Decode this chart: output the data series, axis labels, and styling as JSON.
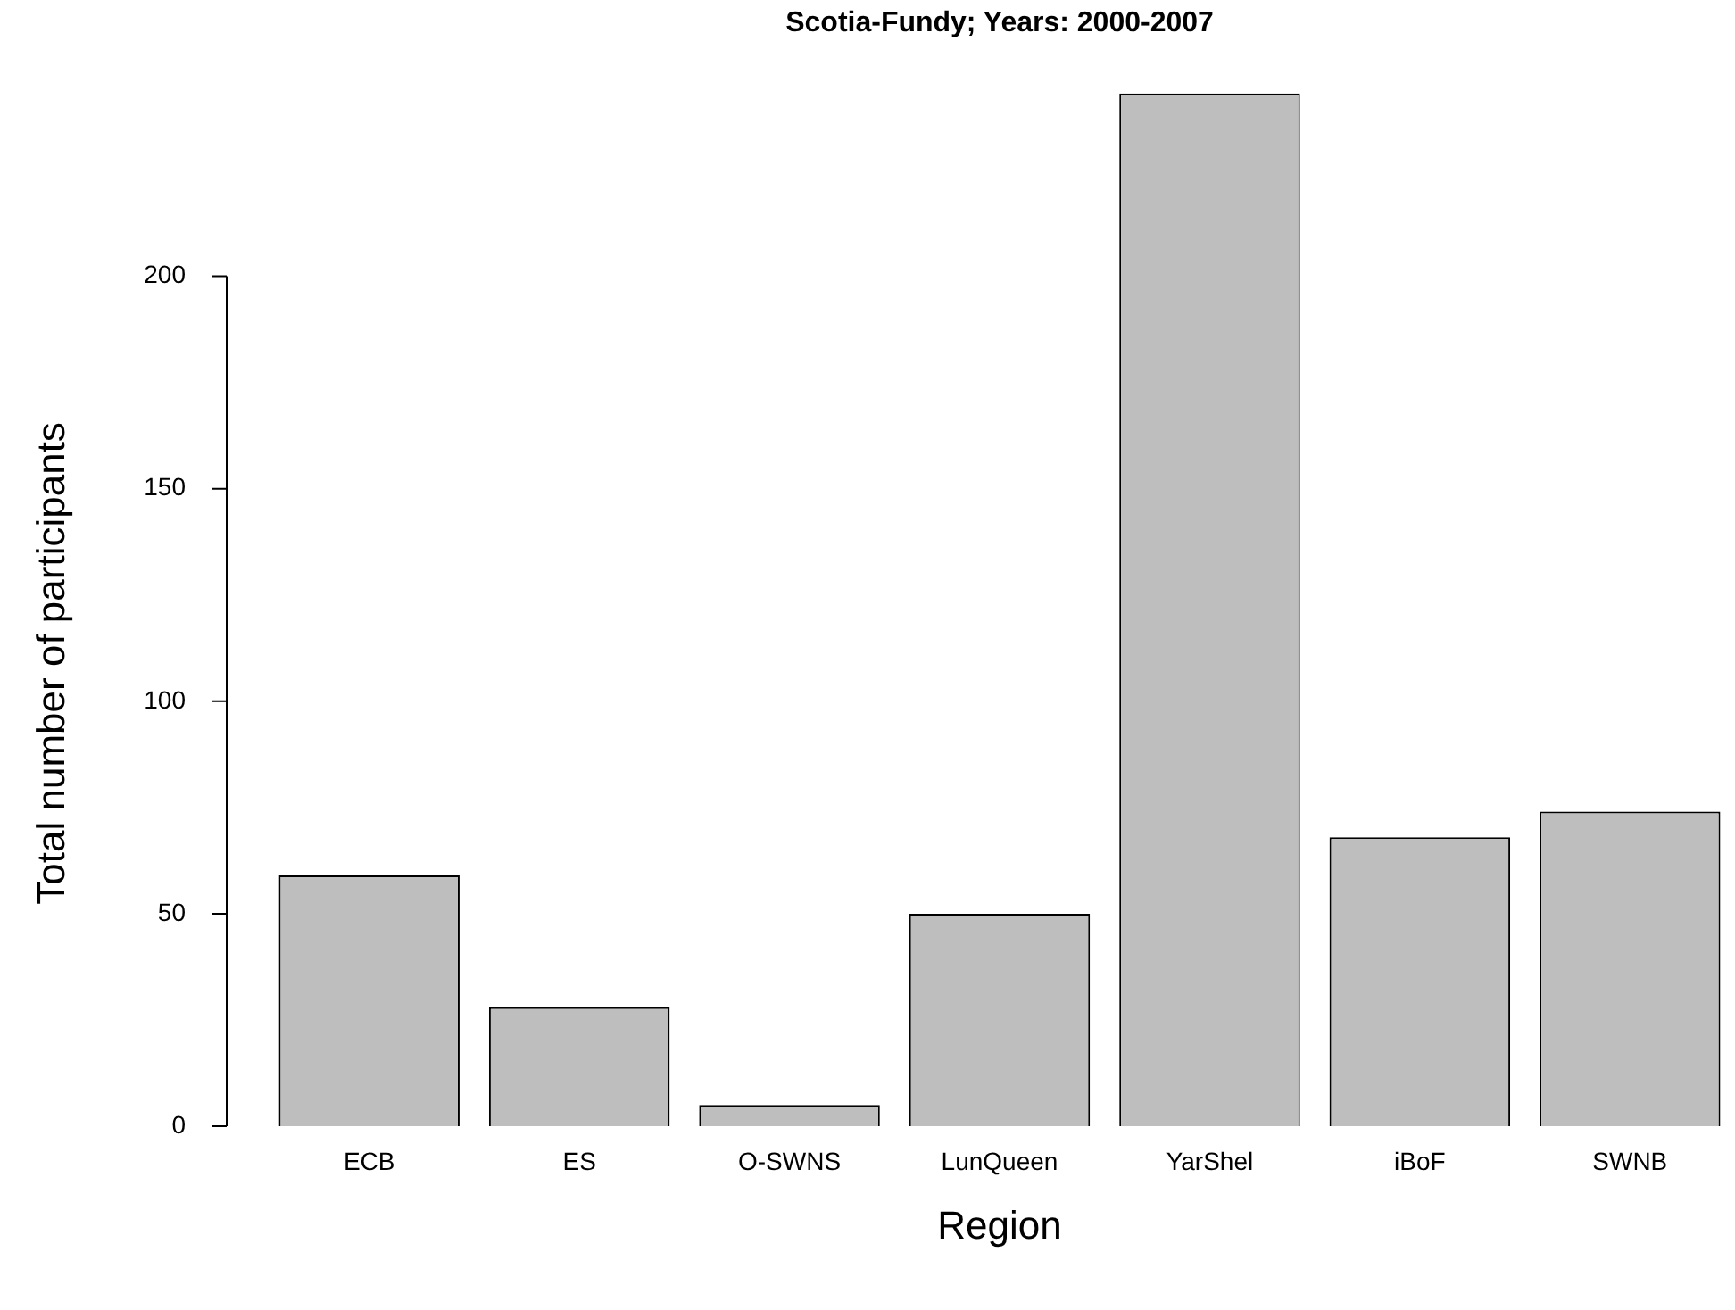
{
  "chart_data": {
    "type": "bar",
    "title": "Scotia-Fundy; Years: 2000-2007",
    "xlabel": "Region",
    "ylabel": "Total number of participants",
    "categories": [
      "ECB",
      "ES",
      "O-SWNS",
      "LunQueen",
      "YarShel",
      "iBoF",
      "SWNB"
    ],
    "values": [
      59,
      28,
      5,
      50,
      243,
      68,
      74
    ],
    "color": "#bebebe",
    "ylim": [
      0,
      243
    ],
    "yticks": [
      0,
      50,
      100,
      150,
      200
    ],
    "grid": false,
    "legend": false
  }
}
